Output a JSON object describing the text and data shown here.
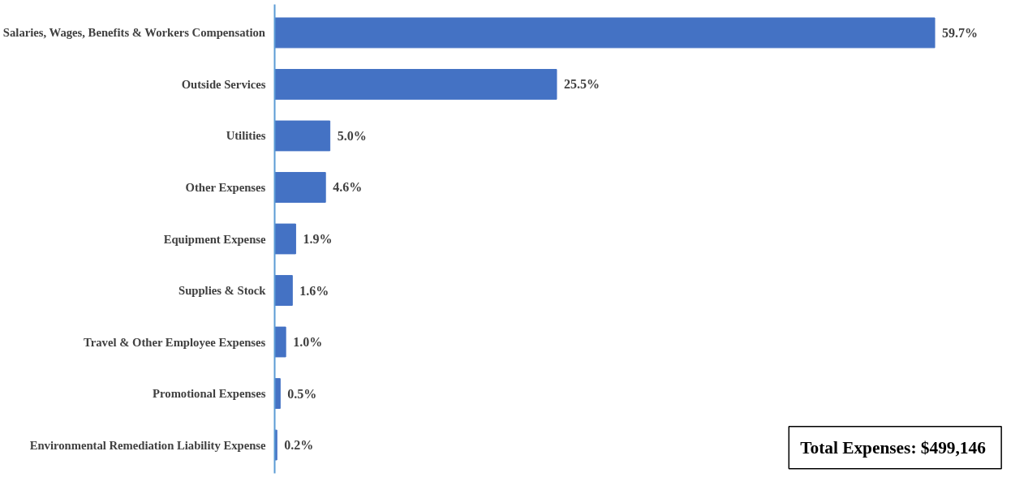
{
  "chart_data": {
    "type": "bar",
    "orientation": "horizontal",
    "categories": [
      "Salaries, Wages, Benefits & Workers Compensation",
      "Outside Services",
      "Utilities",
      "Other Expenses",
      "Equipment Expense",
      "Supplies & Stock",
      "Travel & Other Employee Expenses",
      "Promotional Expenses",
      "Environmental Remediation Liability Expense"
    ],
    "values": [
      59.7,
      25.5,
      5.0,
      4.6,
      1.9,
      1.6,
      1.0,
      0.5,
      0.2
    ],
    "value_labels": [
      "59.7%",
      "25.5%",
      "5.0%",
      "4.6%",
      "1.9%",
      "1.6%",
      "1.0%",
      "0.5%",
      "0.2%"
    ],
    "color": "#4472c4",
    "annotations": [
      "Total Expenses:  $499,146"
    ],
    "grid": false
  }
}
